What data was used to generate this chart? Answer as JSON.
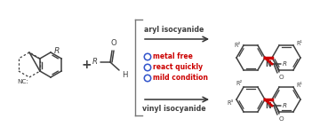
{
  "background_color": "#ffffff",
  "bond_color": "#404040",
  "red_color": "#cc0000",
  "bullet_blue": "#3355cc",
  "arrow_color": "#333333",
  "labels": {
    "aryl_isocyanide": "aryl isocyanide",
    "vinyl_isocyanide": "vinyl isocyanide",
    "metal_free": "metal free",
    "react_quickly": "react quickly",
    "mild_condition": "mild condition"
  },
  "font_size": 6.0,
  "font_size_small": 5.2,
  "font_size_label": 6.5
}
